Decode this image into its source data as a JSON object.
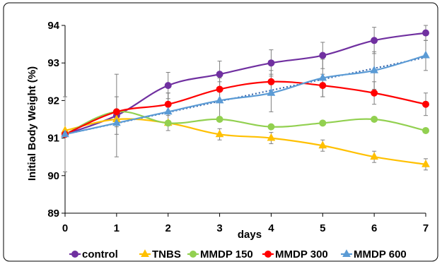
{
  "chart_data": {
    "type": "line",
    "title": "",
    "xlabel": "days",
    "ylabel": "Initial Body Weight (%)",
    "x": [
      0,
      1,
      2,
      3,
      4,
      5,
      6,
      7
    ],
    "x_tick_labels": [
      "0",
      "1",
      "2",
      "3",
      "4",
      "5",
      "6",
      "7"
    ],
    "y_tick_labels": [
      "89",
      "90",
      "91",
      "92",
      "93",
      "94"
    ],
    "ylim": [
      89,
      94
    ],
    "xlim": [
      0,
      7
    ],
    "grid": false,
    "legend": "bottom",
    "series": [
      {
        "name": "control",
        "color": "#7030A0",
        "marker": "circle",
        "values": [
          91.1,
          91.6,
          92.4,
          92.7,
          93.0,
          93.2,
          93.6,
          93.8
        ],
        "errors": [
          0.0,
          1.1,
          0.35,
          0.35,
          0.35,
          0.35,
          0.35,
          0.2
        ]
      },
      {
        "name": "TNBS",
        "color": "#FFC000",
        "marker": "triangle",
        "values": [
          91.2,
          91.5,
          91.4,
          91.1,
          91.0,
          90.8,
          90.5,
          90.3
        ],
        "errors": [
          0.0,
          0.0,
          0.0,
          0.15,
          0.15,
          0.15,
          0.15,
          0.15
        ]
      },
      {
        "name": "MMDP 150",
        "color": "#92D050",
        "marker": "circle",
        "values": [
          91.1,
          91.7,
          91.4,
          91.5,
          91.3,
          91.4,
          91.5,
          91.2
        ],
        "errors": [
          0.0,
          0.0,
          0.0,
          0.0,
          0.0,
          0.0,
          0.0,
          0.0
        ]
      },
      {
        "name": "MMDP 300",
        "color": "#FF0000",
        "marker": "circle",
        "values": [
          91.1,
          91.7,
          91.9,
          92.3,
          92.5,
          92.4,
          92.2,
          91.9
        ],
        "errors": [
          0.0,
          0.4,
          0.3,
          0.3,
          0.3,
          0.3,
          0.3,
          0.3
        ]
      },
      {
        "name": "MMDP 600",
        "color": "#5B9BD5",
        "marker": "triangle",
        "values": [
          91.1,
          91.4,
          91.7,
          92.0,
          92.2,
          92.6,
          92.8,
          93.2
        ],
        "errors": [
          1.0,
          0.3,
          0.5,
          0.5,
          0.5,
          0.5,
          0.5,
          0.4
        ],
        "trendline": true
      }
    ]
  }
}
